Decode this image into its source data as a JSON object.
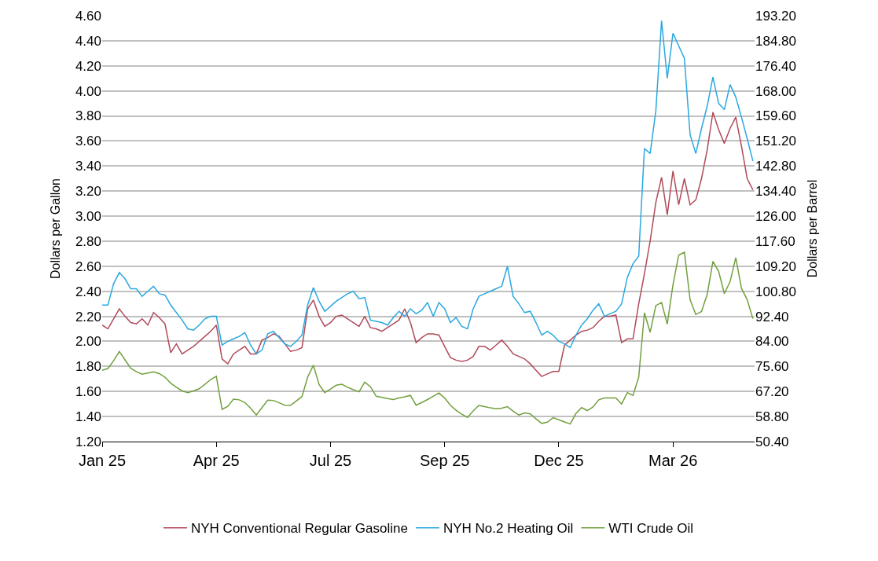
{
  "chart_data": {
    "type": "line",
    "ylabel": "Dollars per Gallon",
    "y2label": "Dollars per Barrel",
    "categories": [
      "Jan 25",
      null,
      null,
      null,
      null,
      null,
      null,
      null,
      null,
      null,
      null,
      null,
      null,
      null,
      null,
      null,
      null,
      null,
      null,
      null,
      "Apr 25",
      null,
      null,
      null,
      null,
      null,
      null,
      null,
      null,
      null,
      null,
      null,
      null,
      null,
      null,
      null,
      null,
      null,
      null,
      null,
      "Jul 25",
      null,
      null,
      null,
      null,
      null,
      null,
      null,
      null,
      null,
      null,
      null,
      null,
      null,
      null,
      null,
      null,
      null,
      null,
      null,
      "Sep 25",
      null,
      null,
      null,
      null,
      null,
      null,
      null,
      null,
      null,
      null,
      null,
      null,
      null,
      null,
      null,
      null,
      null,
      null,
      null,
      "Dec 25",
      null,
      null,
      null,
      null,
      null,
      null,
      null,
      null,
      null,
      null,
      null,
      null,
      null,
      null,
      null,
      null,
      null,
      null,
      null,
      "Mar 26",
      null,
      null,
      null,
      null,
      null,
      null,
      null,
      null,
      null,
      null,
      null,
      null,
      null,
      null
    ],
    "ylim": [
      1.2,
      4.6
    ],
    "yticks": [
      {
        "value": 1.2,
        "label": "1.20"
      },
      {
        "value": 1.4,
        "label": "1.40"
      },
      {
        "value": 1.6,
        "label": "1.60"
      },
      {
        "value": 1.8,
        "label": "1.80"
      },
      {
        "value": 2.0,
        "label": "2.00"
      },
      {
        "value": 2.2,
        "label": "2.20"
      },
      {
        "value": 2.4,
        "label": "2.40"
      },
      {
        "value": 2.6,
        "label": "2.60"
      },
      {
        "value": 2.8,
        "label": "2.80"
      },
      {
        "value": 3.0,
        "label": "3.00"
      },
      {
        "value": 3.2,
        "label": "3.20"
      },
      {
        "value": 3.4,
        "label": "3.40"
      },
      {
        "value": 3.6,
        "label": "3.60"
      },
      {
        "value": 3.8,
        "label": "3.80"
      },
      {
        "value": 4.0,
        "label": "4.00"
      },
      {
        "value": 4.2,
        "label": "4.20"
      },
      {
        "value": 4.4,
        "label": "4.40"
      },
      {
        "value": 4.6,
        "label": "4.60"
      }
    ],
    "y2lim": [
      50.4,
      193.2
    ],
    "y2ticks": [
      {
        "value": 50.4,
        "label": "50.40"
      },
      {
        "value": 58.8,
        "label": "58.80"
      },
      {
        "value": 67.2,
        "label": "67.20"
      },
      {
        "value": 75.6,
        "label": "75.60"
      },
      {
        "value": 84.0,
        "label": "84.00"
      },
      {
        "value": 92.4,
        "label": "92.40"
      },
      {
        "value": 100.8,
        "label": "100.80"
      },
      {
        "value": 109.2,
        "label": "109.20"
      },
      {
        "value": 117.6,
        "label": "117.60"
      },
      {
        "value": 126.0,
        "label": "126.00"
      },
      {
        "value": 134.4,
        "label": "134.40"
      },
      {
        "value": 142.8,
        "label": "142.80"
      },
      {
        "value": 151.2,
        "label": "151.20"
      },
      {
        "value": 159.6,
        "label": "159.60"
      },
      {
        "value": 168.0,
        "label": "168.00"
      },
      {
        "value": 176.4,
        "label": "176.40"
      },
      {
        "value": 184.8,
        "label": "184.80"
      },
      {
        "value": 193.2,
        "label": "193.20"
      }
    ],
    "grid": "y",
    "legend": "bottom",
    "marker": "none",
    "line_style": "solid",
    "series": [
      {
        "name": "NYH Conventional Regular Gasoline",
        "color": "#b04a5a",
        "values": [
          2.13,
          2.1,
          2.18,
          2.26,
          2.2,
          2.15,
          2.14,
          2.18,
          2.13,
          2.23,
          2.19,
          2.14,
          1.91,
          1.98,
          1.9,
          1.93,
          1.96,
          2.0,
          2.04,
          2.08,
          2.13,
          1.86,
          1.82,
          1.9,
          1.93,
          1.96,
          1.9,
          1.9,
          2.01,
          2.03,
          2.06,
          2.04,
          1.98,
          1.92,
          1.93,
          1.95,
          2.26,
          2.33,
          2.2,
          2.12,
          2.15,
          2.2,
          2.21,
          2.18,
          2.15,
          2.12,
          2.2,
          2.11,
          2.1,
          2.08,
          2.11,
          2.14,
          2.17,
          2.26,
          2.15,
          1.99,
          2.03,
          2.06,
          2.06,
          2.05,
          1.96,
          1.87,
          1.85,
          1.84,
          1.85,
          1.88,
          1.96,
          1.96,
          1.93,
          1.97,
          2.01,
          1.96,
          1.9,
          1.88,
          1.86,
          1.82,
          1.77,
          1.72,
          1.74,
          1.76,
          1.76,
          1.97,
          2.01,
          2.05,
          2.08,
          2.09,
          2.11,
          2.16,
          2.2,
          2.2,
          2.21,
          1.99,
          2.02,
          2.02,
          2.3,
          2.54,
          2.8,
          3.11,
          3.31,
          3.01,
          3.36,
          3.09,
          3.3,
          3.09,
          3.13,
          3.3,
          3.53,
          3.83,
          3.69,
          3.58,
          3.7,
          3.79,
          3.56,
          3.3,
          3.21
        ]
      },
      {
        "name": "NYH No.2 Heating Oil",
        "color": "#29a8e0",
        "values": [
          2.29,
          2.29,
          2.46,
          2.55,
          2.5,
          2.42,
          2.42,
          2.36,
          2.4,
          2.44,
          2.38,
          2.37,
          2.29,
          2.23,
          2.17,
          2.1,
          2.09,
          2.13,
          2.18,
          2.2,
          2.2,
          1.97,
          2.0,
          2.02,
          2.04,
          2.07,
          1.97,
          1.9,
          1.93,
          2.06,
          2.08,
          2.03,
          1.98,
          1.96,
          2.0,
          2.05,
          2.29,
          2.43,
          2.32,
          2.24,
          2.28,
          2.32,
          2.35,
          2.38,
          2.4,
          2.34,
          2.35,
          2.17,
          2.16,
          2.15,
          2.13,
          2.19,
          2.24,
          2.2,
          2.26,
          2.22,
          2.25,
          2.31,
          2.2,
          2.31,
          2.26,
          2.15,
          2.19,
          2.12,
          2.1,
          2.26,
          2.36,
          2.38,
          2.4,
          2.42,
          2.44,
          2.6,
          2.36,
          2.3,
          2.23,
          2.24,
          2.15,
          2.05,
          2.08,
          2.05,
          2.0,
          1.98,
          1.95,
          2.05,
          2.13,
          2.18,
          2.25,
          2.3,
          2.2,
          2.22,
          2.24,
          2.3,
          2.51,
          2.62,
          2.68,
          3.54,
          3.5,
          3.84,
          4.56,
          4.1,
          4.46,
          4.36,
          4.26,
          3.65,
          3.5,
          3.7,
          3.88,
          4.11,
          3.9,
          3.85,
          4.05,
          3.95,
          3.79,
          3.62,
          3.44
        ]
      },
      {
        "name": "WTI Crude Oil",
        "color": "#72a03e",
        "axis": "y2",
        "values": [
          74.3,
          74.9,
          77.5,
          80.6,
          77.8,
          75.0,
          73.8,
          73.0,
          73.4,
          73.8,
          73.2,
          72.0,
          70.0,
          68.6,
          67.4,
          66.8,
          67.4,
          68.1,
          69.6,
          71.2,
          72.3,
          61.2,
          62.2,
          64.6,
          64.4,
          63.5,
          61.6,
          59.3,
          61.8,
          64.3,
          64.2,
          63.4,
          62.6,
          62.5,
          64.0,
          65.5,
          72.0,
          76.0,
          69.5,
          66.8,
          68.0,
          69.3,
          69.6,
          68.6,
          67.8,
          67.1,
          70.3,
          68.8,
          65.6,
          65.2,
          64.8,
          64.5,
          65.0,
          65.4,
          65.9,
          62.6,
          63.5,
          64.5,
          65.6,
          66.7,
          65.0,
          62.6,
          60.9,
          59.6,
          58.5,
          60.7,
          62.5,
          62.1,
          61.7,
          61.4,
          61.6,
          62.1,
          60.6,
          59.3,
          60.0,
          59.7,
          58.0,
          56.5,
          56.9,
          58.4,
          57.7,
          57.0,
          56.3,
          59.8,
          61.8,
          60.8,
          62.0,
          64.4,
          65.0,
          65.0,
          65.0,
          63.0,
          66.8,
          65.9,
          72.0,
          93.6,
          87.0,
          96.0,
          97.0,
          89.8,
          103.0,
          112.9,
          113.9,
          98.0,
          93.0,
          94.0,
          99.8,
          110.8,
          107.5,
          100.0,
          104.0,
          112.1,
          101.8,
          98.0,
          91.6
        ]
      }
    ]
  }
}
